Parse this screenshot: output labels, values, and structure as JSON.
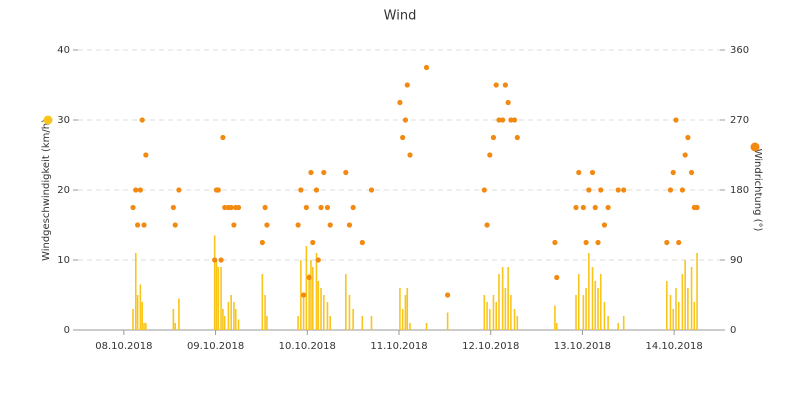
{
  "chart_data": {
    "type": "bar-scatter",
    "title": "Wind",
    "y_label": "Windgeschwindigkeit (km/h)",
    "y2_label": "Windrichtung (°)",
    "xlim": [
      8,
      15
    ],
    "xticks": [
      {
        "value": 8.5,
        "label": "08.10.2018"
      },
      {
        "value": 9.5,
        "label": "09.10.2018"
      },
      {
        "value": 10.5,
        "label": "10.10.2018"
      },
      {
        "value": 11.5,
        "label": "11.10.2018"
      },
      {
        "value": 12.5,
        "label": "12.10.2018"
      },
      {
        "value": 13.5,
        "label": "13.10.2018"
      },
      {
        "value": 14.5,
        "label": "14.10.2018"
      }
    ],
    "ylim": [
      0,
      40
    ],
    "yticks": [
      0,
      10,
      20,
      30,
      40
    ],
    "y2lim": [
      0,
      360
    ],
    "y2ticks": [
      0,
      90,
      180,
      270,
      360
    ],
    "grid": true,
    "x": [
      8.6,
      8.63,
      8.65,
      8.68,
      8.7,
      8.72,
      8.74,
      9.04,
      9.06,
      9.1,
      9.49,
      9.51,
      9.53,
      9.56,
      9.58,
      9.6,
      9.64,
      9.67,
      9.7,
      9.72,
      9.75,
      10.01,
      10.04,
      10.06,
      10.4,
      10.43,
      10.46,
      10.49,
      10.52,
      10.54,
      10.56,
      10.6,
      10.62,
      10.65,
      10.68,
      10.72,
      10.75,
      10.92,
      10.96,
      11.0,
      11.1,
      11.2,
      11.51,
      11.54,
      11.57,
      11.59,
      11.62,
      11.8,
      12.03,
      12.43,
      12.46,
      12.49,
      12.53,
      12.56,
      12.59,
      12.63,
      12.66,
      12.69,
      12.72,
      12.76,
      12.79,
      13.2,
      13.22,
      13.43,
      13.46,
      13.51,
      13.54,
      13.57,
      13.61,
      13.64,
      13.67,
      13.7,
      13.74,
      13.78,
      13.89,
      13.95,
      14.42,
      14.46,
      14.49,
      14.52,
      14.55,
      14.59,
      14.62,
      14.65,
      14.69,
      14.72,
      14.75
    ],
    "series": [
      {
        "color": "#f9c51b",
        "values": [
          3,
          11,
          5,
          6.5,
          4,
          1,
          1,
          3,
          1,
          4.5,
          13.5,
          10,
          9,
          9,
          3,
          2,
          4,
          5,
          4,
          3,
          1.5,
          8,
          5,
          2,
          2,
          10,
          5,
          12,
          8,
          10,
          9,
          11,
          7,
          6,
          5,
          4,
          2,
          8,
          5,
          3,
          2,
          2,
          6,
          3,
          5,
          6,
          1,
          1,
          2.5,
          5,
          4,
          3,
          5,
          4,
          8,
          9,
          6,
          9,
          5,
          3,
          2,
          3.5,
          1,
          5,
          8,
          5,
          6,
          11,
          9,
          7,
          6,
          8,
          4,
          2,
          1,
          2,
          7,
          5,
          3,
          6,
          4,
          8,
          10,
          6,
          9,
          4,
          11
        ]
      },
      {
        "color": "#f28a12",
        "axis": "y2",
        "values": [
          157.5,
          180,
          135,
          180,
          270,
          135,
          225,
          157.5,
          135,
          180,
          90,
          180,
          180,
          90,
          247.5,
          157.5,
          157.5,
          157.5,
          135,
          157.5,
          157.5,
          112.5,
          157.5,
          135,
          135,
          180,
          45,
          157.5,
          67.5,
          202.5,
          112.5,
          180,
          90,
          157.5,
          202.5,
          157.5,
          135,
          202.5,
          135,
          157.5,
          112.5,
          180,
          292.5,
          247.5,
          270,
          315,
          225,
          337.5,
          45,
          180,
          135,
          225,
          247.5,
          315,
          270,
          270,
          315,
          292.5,
          270,
          270,
          247.5,
          112.5,
          67.5,
          157.5,
          202.5,
          157.5,
          112.5,
          180,
          202.5,
          157.5,
          112.5,
          180,
          135,
          157.5,
          180,
          180,
          112.5,
          180,
          202.5,
          270,
          112.5,
          180,
          225,
          247.5,
          202.5,
          157.5,
          157.5
        ]
      }
    ]
  }
}
